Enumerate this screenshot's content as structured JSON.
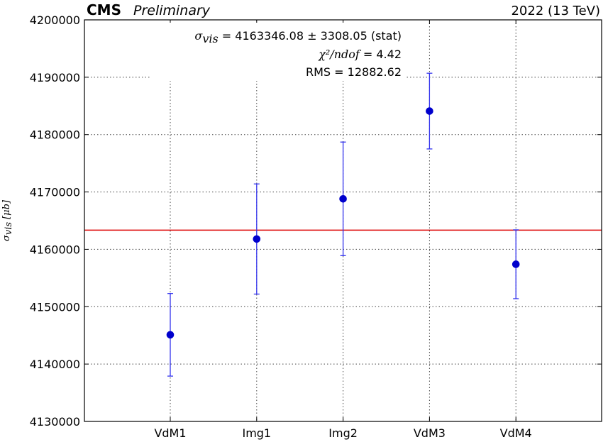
{
  "header": {
    "experiment": "CMS",
    "status": "Preliminary",
    "run_label": "2022 (13 TeV)"
  },
  "annotations": {
    "line1_symbol": "σ",
    "line1_subscript": "vis",
    "line1_text": " = 4163346.08 ± 3308.05 (stat)",
    "line2_symbol": "χ²/ndof",
    "line2_text": " = 4.42",
    "line3_text": "RMS = 12882.62"
  },
  "colors": {
    "points": "#0000cc",
    "errorbars": "#3333ee",
    "fit_line": "#dd0000",
    "grid": "#444444"
  },
  "chart_data": {
    "type": "scatter",
    "categories": [
      "VdM1",
      "Img1",
      "Img2",
      "VdM3",
      "VdM4"
    ],
    "values": [
      4145100,
      4161800,
      4168800,
      4184100,
      4157400
    ],
    "errors": [
      7200,
      9600,
      9900,
      6600,
      6000
    ],
    "fit_value": 4163346.08,
    "ylim": [
      4130000,
      4200000
    ],
    "yticks": [
      "4130000",
      "4140000",
      "4150000",
      "4160000",
      "4170000",
      "4180000",
      "4190000",
      "4200000"
    ],
    "ylabel": "σvis [μb]",
    "ylabel_symbol": "σ",
    "ylabel_subscript": "vis",
    "ylabel_unit": "[μb]",
    "xlabel": "",
    "grid": true
  }
}
